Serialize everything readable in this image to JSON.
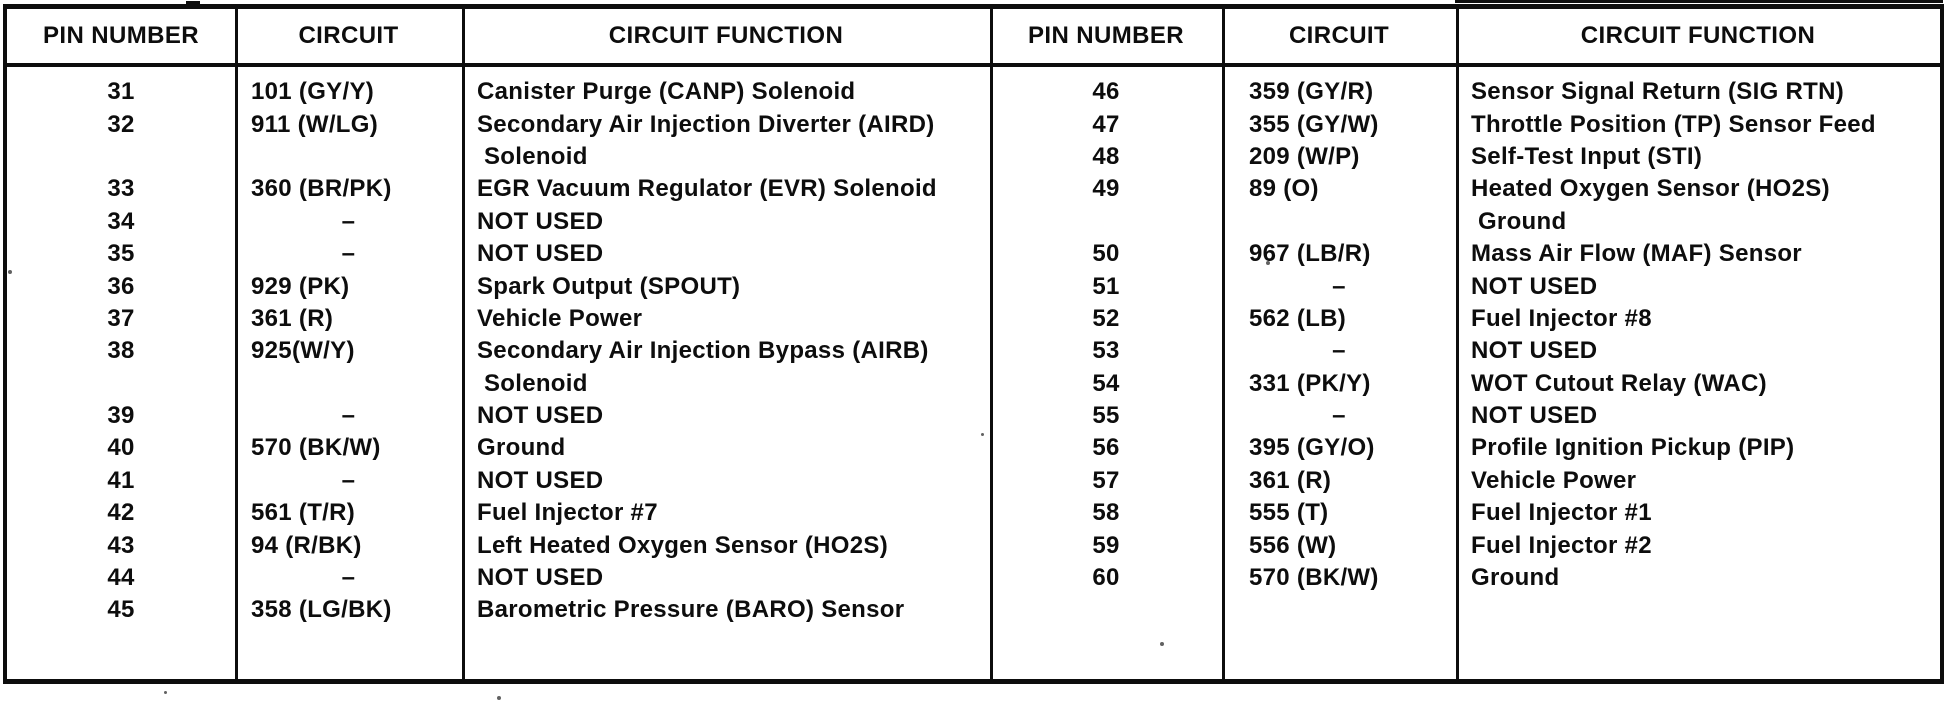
{
  "colors": {
    "ink": "#0d0d0d",
    "paper": "#ffffff"
  },
  "tables": [
    {
      "headers": [
        "PIN NUMBER",
        "CIRCUIT",
        "CIRCUIT FUNCTION"
      ],
      "rows": [
        {
          "pin": "31",
          "circuit": "101 (GY/Y)",
          "function": "Canister Purge (CANP) Solenoid"
        },
        {
          "pin": "32",
          "circuit": "911 (W/LG)",
          "function": "Secondary Air Injection Diverter (AIRD)"
        },
        {
          "pin": "",
          "circuit": "",
          "function": " Solenoid"
        },
        {
          "pin": "33",
          "circuit": "360 (BR/PK)",
          "function": "EGR Vacuum Regulator (EVR) Solenoid"
        },
        {
          "pin": "34",
          "circuit": "–",
          "function": "NOT USED"
        },
        {
          "pin": "35",
          "circuit": "–",
          "function": "NOT USED"
        },
        {
          "pin": "36",
          "circuit": "929 (PK)",
          "function": "Spark Output (SPOUT)"
        },
        {
          "pin": "37",
          "circuit": "361 (R)",
          "function": "Vehicle Power"
        },
        {
          "pin": "38",
          "circuit": "925(W/Y)",
          "function": "Secondary Air Injection Bypass (AIRB)"
        },
        {
          "pin": "",
          "circuit": "",
          "function": " Solenoid"
        },
        {
          "pin": "39",
          "circuit": "–",
          "function": "NOT USED"
        },
        {
          "pin": "40",
          "circuit": "570 (BK/W)",
          "function": "Ground"
        },
        {
          "pin": "41",
          "circuit": "–",
          "function": "NOT USED"
        },
        {
          "pin": "42",
          "circuit": "561 (T/R)",
          "function": "Fuel Injector #7"
        },
        {
          "pin": "43",
          "circuit": "94 (R/BK)",
          "function": "Left Heated Oxygen Sensor (HO2S)"
        },
        {
          "pin": "44",
          "circuit": "–",
          "function": "NOT USED"
        },
        {
          "pin": "45",
          "circuit": "358 (LG/BK)",
          "function": "Barometric Pressure (BARO) Sensor"
        }
      ]
    },
    {
      "headers": [
        "PIN NUMBER",
        "CIRCUIT",
        "CIRCUIT FUNCTION"
      ],
      "rows": [
        {
          "pin": "46",
          "circuit": "359 (GY/R)",
          "function": "Sensor Signal Return (SIG RTN)"
        },
        {
          "pin": "47",
          "circuit": "355 (GY/W)",
          "function": "Throttle Position (TP) Sensor Feed"
        },
        {
          "pin": "48",
          "circuit": "209 (W/P)",
          "function": "Self-Test Input (STI)"
        },
        {
          "pin": "49",
          "circuit": "89 (O)",
          "function": "Heated Oxygen Sensor (HO2S)"
        },
        {
          "pin": "",
          "circuit": "",
          "function": " Ground"
        },
        {
          "pin": "50",
          "circuit": "967 (LB/R)",
          "function": "Mass Air Flow (MAF) Sensor"
        },
        {
          "pin": "51",
          "circuit": "–",
          "function": "NOT USED"
        },
        {
          "pin": "52",
          "circuit": "562 (LB)",
          "function": "Fuel Injector #8"
        },
        {
          "pin": "53",
          "circuit": "–",
          "function": "NOT USED"
        },
        {
          "pin": "54",
          "circuit": "331 (PK/Y)",
          "function": "WOT Cutout Relay (WAC)"
        },
        {
          "pin": "55",
          "circuit": "–",
          "function": "NOT USED"
        },
        {
          "pin": "56",
          "circuit": "395 (GY/O)",
          "function": "Profile Ignition Pickup (PIP)"
        },
        {
          "pin": "57",
          "circuit": "361 (R)",
          "function": "Vehicle Power"
        },
        {
          "pin": "58",
          "circuit": "555 (T)",
          "function": "Fuel Injector #1"
        },
        {
          "pin": "59",
          "circuit": "556 (W)",
          "function": "Fuel Injector #2"
        },
        {
          "pin": "60",
          "circuit": "570 (BK/W)",
          "function": "Ground"
        }
      ]
    }
  ]
}
